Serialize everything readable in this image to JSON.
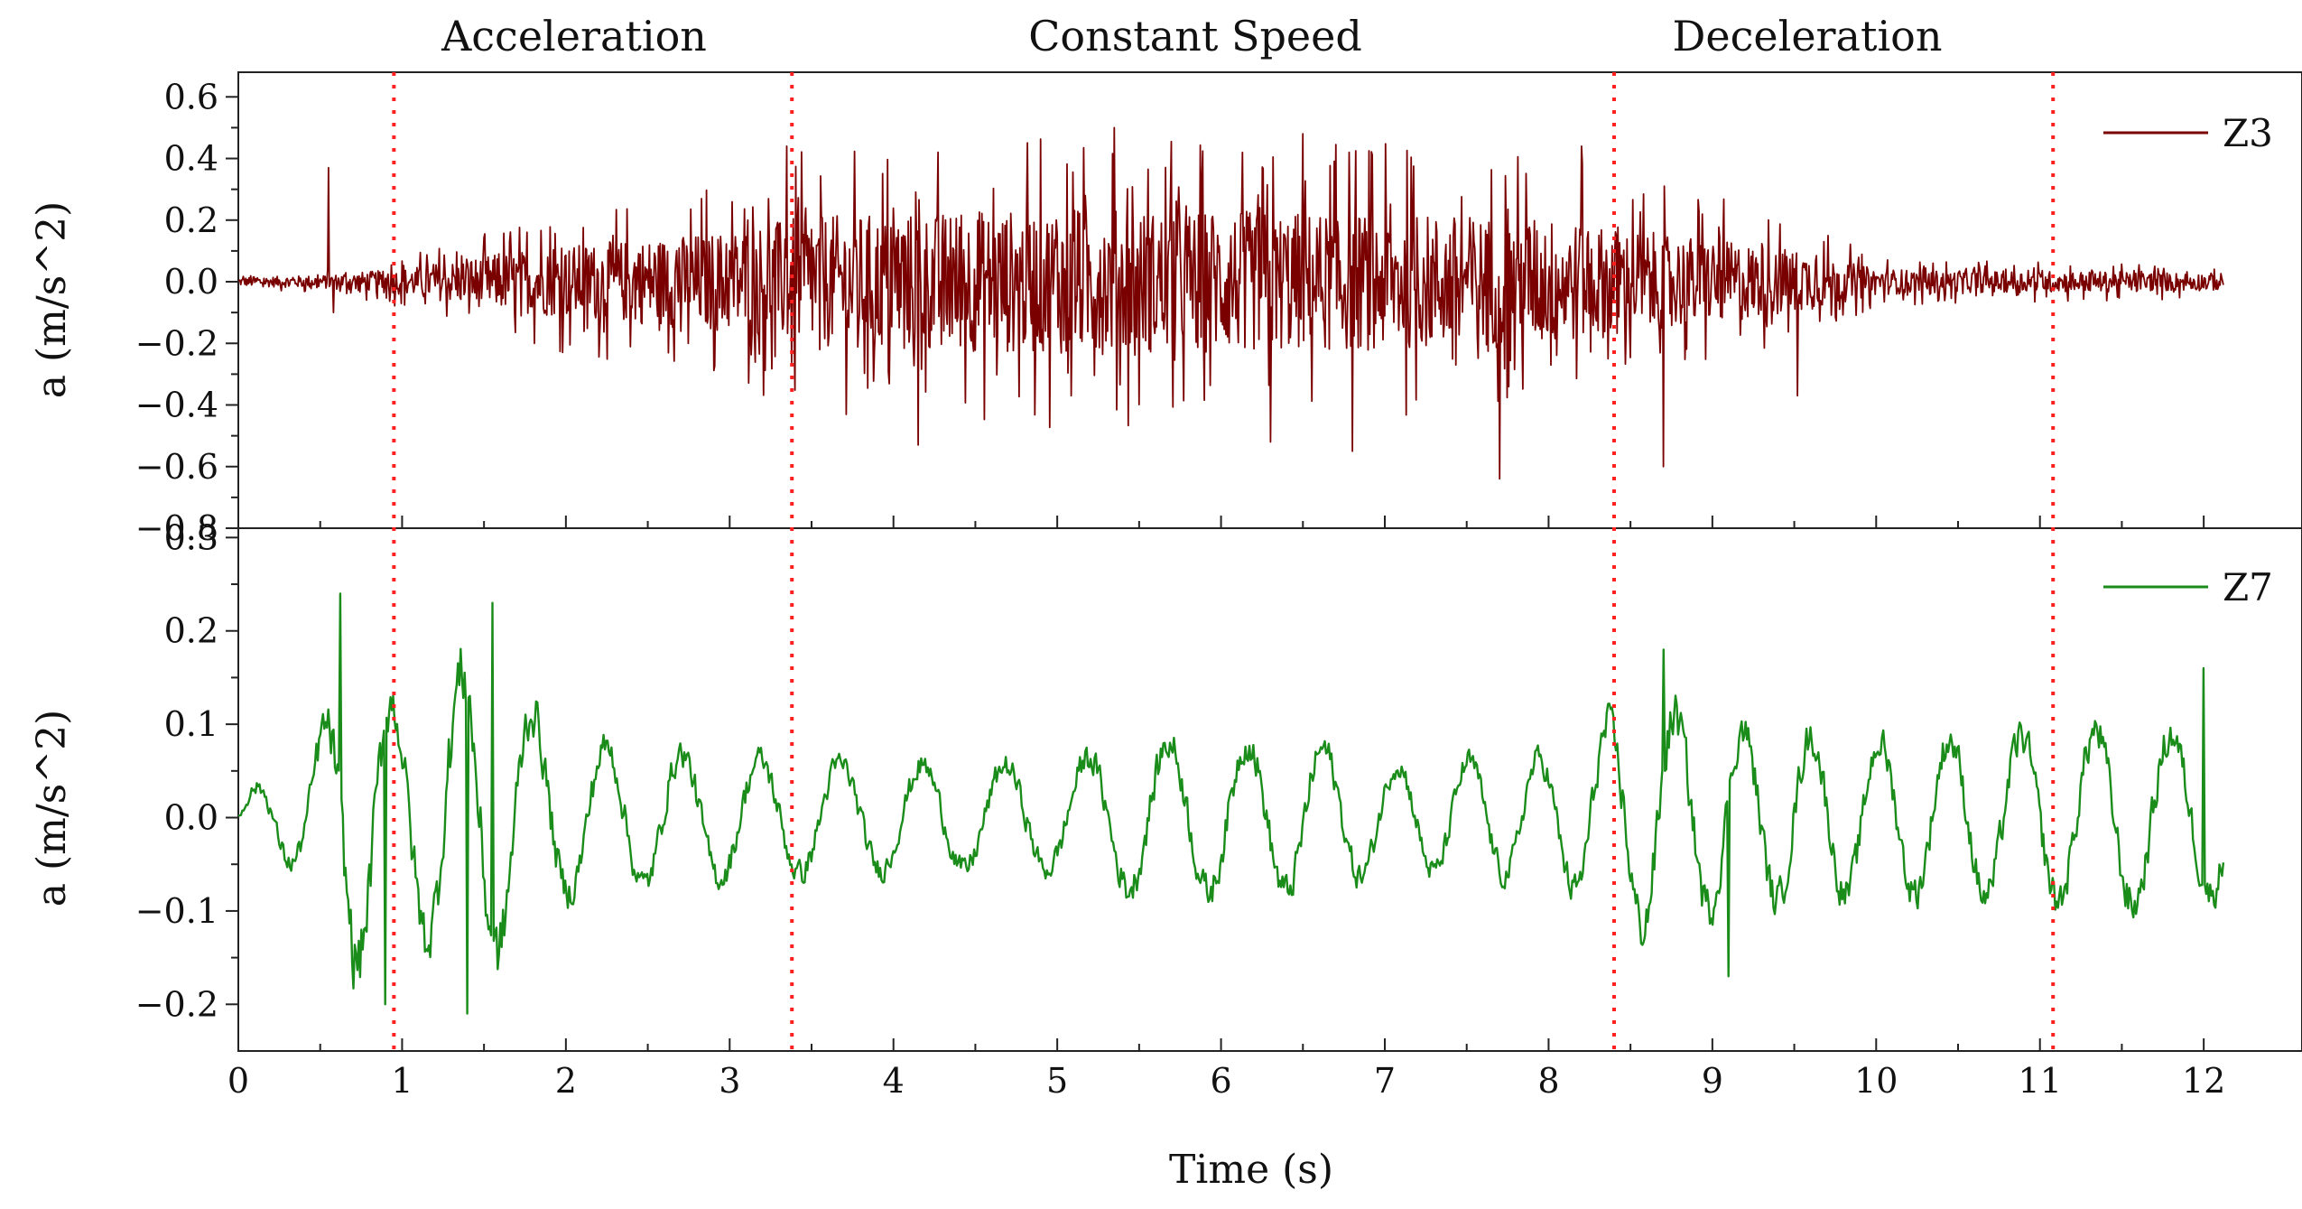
{
  "chart_data": {
    "type": "line",
    "xlabel": "Time (s)",
    "x_ticks": [
      "0",
      "1",
      "2",
      "3",
      "4",
      "5",
      "6",
      "7",
      "8",
      "9",
      "10",
      "11",
      "12"
    ],
    "xlim": [
      0,
      12.6
    ],
    "phases": [
      {
        "label": "Acceleration",
        "x_start": 0.95,
        "x_end": 3.38
      },
      {
        "label": "Constant Speed",
        "x_start": 3.38,
        "x_end": 8.4
      },
      {
        "label": "Deceleration",
        "x_start": 8.4,
        "x_end": 11.08
      }
    ],
    "phase_boundaries": [
      0.95,
      3.38,
      8.4,
      11.08
    ],
    "boundary_color": "#ff2020",
    "panels": [
      {
        "series_name": "Z3",
        "ylabel": "a (m/s^2)",
        "color": "#7a0000",
        "ylim": [
          -0.8,
          0.68
        ],
        "y_ticks": [
          "0.6",
          "0.4",
          "0.2",
          "0.0",
          "-0.2",
          "-0.4",
          "-0.6",
          "-0.8"
        ],
        "y_tick_values": [
          0.6,
          0.4,
          0.2,
          0.0,
          -0.2,
          -0.4,
          -0.6,
          -0.8
        ],
        "t_end": 12.12,
        "envelope": [
          [
            0,
            0.02
          ],
          [
            0.5,
            0.03
          ],
          [
            1.0,
            0.06
          ],
          [
            1.5,
            0.12
          ],
          [
            2.0,
            0.17
          ],
          [
            2.5,
            0.2
          ],
          [
            3.0,
            0.24
          ],
          [
            3.4,
            0.3
          ],
          [
            4.0,
            0.32
          ],
          [
            5.0,
            0.34
          ],
          [
            6.0,
            0.33
          ],
          [
            7.0,
            0.32
          ],
          [
            8.0,
            0.3
          ],
          [
            8.5,
            0.24
          ],
          [
            9.0,
            0.2
          ],
          [
            9.5,
            0.15
          ],
          [
            10.0,
            0.06
          ],
          [
            10.5,
            0.05
          ],
          [
            11.0,
            0.05
          ],
          [
            12.12,
            0.04
          ]
        ],
        "spikes": [
          [
            0.55,
            0.37
          ],
          [
            0.58,
            -0.1
          ],
          [
            4.15,
            -0.53
          ],
          [
            5.35,
            0.5
          ],
          [
            6.3,
            -0.52
          ],
          [
            6.8,
            -0.55
          ],
          [
            7.7,
            -0.64
          ],
          [
            8.2,
            0.44
          ],
          [
            8.7,
            -0.6
          ],
          [
            3.35,
            0.44
          ],
          [
            6.5,
            0.48
          ],
          [
            9.52,
            -0.37
          ],
          [
            11.45,
            0.05
          ]
        ]
      },
      {
        "series_name": "Z7",
        "ylabel": "a (m/s^2)",
        "color": "#1a8c1a",
        "ylim": [
          -0.25,
          0.31
        ],
        "y_ticks": [
          "0.3",
          "0.2",
          "0.1",
          "0.0",
          "-0.1",
          "-0.2"
        ],
        "y_tick_values": [
          0.3,
          0.2,
          0.1,
          0.0,
          -0.1,
          -0.2
        ],
        "t_end": 12.12,
        "envelope": [
          [
            0,
            0.03
          ],
          [
            0.4,
            0.07
          ],
          [
            0.7,
            0.2
          ],
          [
            1.0,
            0.14
          ],
          [
            1.4,
            0.2
          ],
          [
            1.6,
            0.18
          ],
          [
            2.0,
            0.1
          ],
          [
            3.0,
            0.08
          ],
          [
            4.0,
            0.07
          ],
          [
            5.0,
            0.07
          ],
          [
            5.5,
            0.1
          ],
          [
            6.5,
            0.1
          ],
          [
            7.0,
            0.07
          ],
          [
            8.0,
            0.08
          ],
          [
            8.6,
            0.15
          ],
          [
            9.0,
            0.12
          ],
          [
            10.0,
            0.1
          ],
          [
            11.0,
            0.11
          ],
          [
            11.5,
            0.12
          ],
          [
            12.12,
            0.1
          ]
        ],
        "spikes": [
          [
            0.62,
            0.24
          ],
          [
            0.9,
            -0.2
          ],
          [
            1.55,
            0.23
          ],
          [
            1.4,
            -0.21
          ],
          [
            8.7,
            0.18
          ],
          [
            9.1,
            -0.17
          ],
          [
            12.0,
            0.16
          ]
        ]
      }
    ]
  }
}
